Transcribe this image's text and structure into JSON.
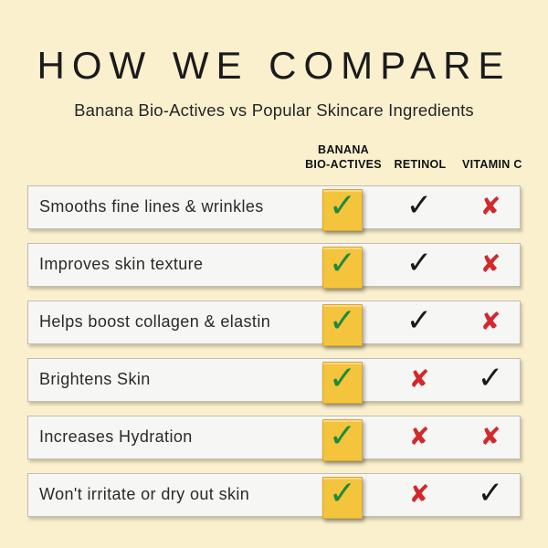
{
  "header": {
    "title": "HOW WE COMPARE",
    "subtitle": "Banana Bio-Actives vs Popular Skincare Ingredients"
  },
  "table": {
    "columns": [
      {
        "id": "banana_bio_actives",
        "line1": "BANANA",
        "line2": "BIO-ACTIVES"
      },
      {
        "id": "retinol",
        "label": "RETINOL"
      },
      {
        "id": "vitamin_c",
        "label": "VITAMIN C"
      }
    ],
    "rows": [
      {
        "label": "Smooths fine lines & wrinkles",
        "marks": [
          "check",
          "check",
          "cross"
        ]
      },
      {
        "label": "Improves skin texture",
        "marks": [
          "check",
          "check",
          "cross"
        ]
      },
      {
        "label": "Helps boost collagen & elastin",
        "marks": [
          "check",
          "check",
          "cross"
        ]
      },
      {
        "label": "Brightens Skin",
        "marks": [
          "check",
          "cross",
          "check"
        ]
      },
      {
        "label": "Increases Hydration",
        "marks": [
          "check",
          "cross",
          "cross"
        ]
      },
      {
        "label": "Won't irritate or dry out skin",
        "marks": [
          "check",
          "cross",
          "check"
        ]
      }
    ]
  },
  "icons": {
    "check": "✓",
    "cross": "✘"
  },
  "colors": {
    "background": "#FAF0CE",
    "row_fill": "#F6F6F5",
    "row_border": "#BDBDB8",
    "banana_box_fill": "#F4C43C",
    "banana_box_border": "#D9A830",
    "check_green": "#1F8A3B",
    "check_black": "#1A1A1A",
    "cross_red": "#D3282C",
    "text": "#1B1B1B"
  },
  "chart_data": {
    "type": "table",
    "title": "HOW WE COMPARE",
    "subtitle": "Banana Bio-Actives vs Popular Skincare Ingredients",
    "columns": [
      "BANANA BIO-ACTIVES",
      "RETINOL",
      "VITAMIN C"
    ],
    "rows": [
      {
        "feature": "Smooths fine lines & wrinkles",
        "values": [
          true,
          true,
          false
        ]
      },
      {
        "feature": "Improves skin texture",
        "values": [
          true,
          true,
          false
        ]
      },
      {
        "feature": "Helps boost collagen & elastin",
        "values": [
          true,
          true,
          false
        ]
      },
      {
        "feature": "Brightens Skin",
        "values": [
          true,
          false,
          true
        ]
      },
      {
        "feature": "Increases Hydration",
        "values": [
          true,
          false,
          false
        ]
      },
      {
        "feature": "Won't irritate or dry out skin",
        "values": [
          true,
          false,
          true
        ]
      }
    ]
  }
}
